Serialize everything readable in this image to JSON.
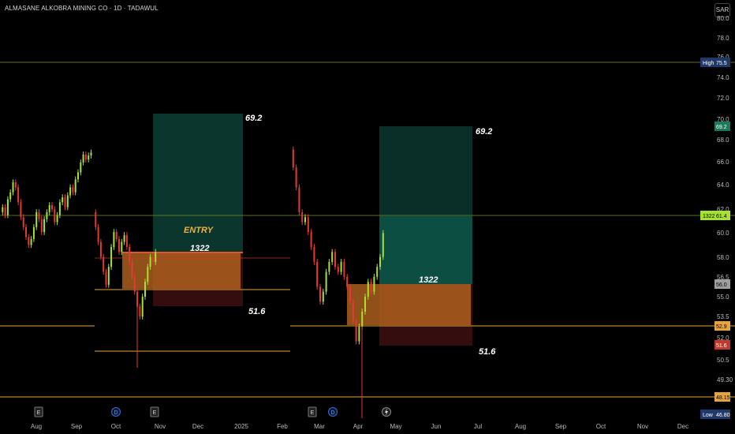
{
  "header": {
    "title": "ALMASANE ALKOBRA MINING CO · 1D · TADAWUL",
    "currency": "SAR"
  },
  "colors": {
    "up": "#a6e22e",
    "down": "#e53935",
    "orange_line": "#e8a33c",
    "profit": "#0f5c4e",
    "loss": "#6b1d1d",
    "entry_box": "#c26a1f"
  },
  "chart_data": {
    "type": "candlestick",
    "y_ticks": [
      80.0,
      78.0,
      76.0,
      74.0,
      72.0,
      70.0,
      68.0,
      66.0,
      64.0,
      62.0,
      60.0,
      58.0,
      56.5,
      55.0,
      53.5,
      52.0,
      50.5,
      49.3,
      48.0
    ],
    "y_tick_labels": [
      "80.0",
      "78.0",
      "76.0",
      "74.0",
      "72.0",
      "70.0",
      "68.0",
      "66.0",
      "64.0",
      "62.0",
      "60.0",
      "58.0",
      "56.5",
      "55.0",
      "53.5",
      "52.0",
      "50.5",
      "49.30",
      "48.0"
    ],
    "x_labels": [
      "Aug",
      "Sep",
      "Oct",
      "Nov",
      "Dec",
      "2025",
      "Feb",
      "Mar",
      "Apr",
      "May",
      "Jun",
      "Jul",
      "Aug",
      "Sep",
      "Oct",
      "Nov",
      "Dec"
    ],
    "price_tags": [
      {
        "label": "High",
        "value": "75.5",
        "bg": "#1e3a6b",
        "fg": "#ffffff"
      },
      {
        "value": "69.2",
        "bg": "#1a7a5e",
        "fg": "#ffffff"
      },
      {
        "label": "1322",
        "value": "61.4",
        "bg": "#a6e22e",
        "fg": "#000000"
      },
      {
        "value": "56.0",
        "bg": "#9e9e9e",
        "fg": "#000000"
      },
      {
        "value": "52.9",
        "bg": "#e8a33c",
        "fg": "#000000"
      },
      {
        "value": "51.6",
        "bg": "#c0392b",
        "fg": "#ffffff"
      },
      {
        "value": "48.15",
        "bg": "#e8a33c",
        "fg": "#000000"
      },
      {
        "label": "Low",
        "value": "46.80",
        "bg": "#1e3a6b",
        "fg": "#ffffff"
      }
    ],
    "trades": [
      {
        "target": "69.2",
        "entry": "ENTRY",
        "quantity": "1322",
        "stop": "51.6"
      },
      {
        "target": "69.2",
        "quantity": "1322",
        "stop": "51.6"
      }
    ],
    "event_markers": [
      "E",
      "D",
      "E",
      "E",
      "D",
      "lightning"
    ]
  }
}
